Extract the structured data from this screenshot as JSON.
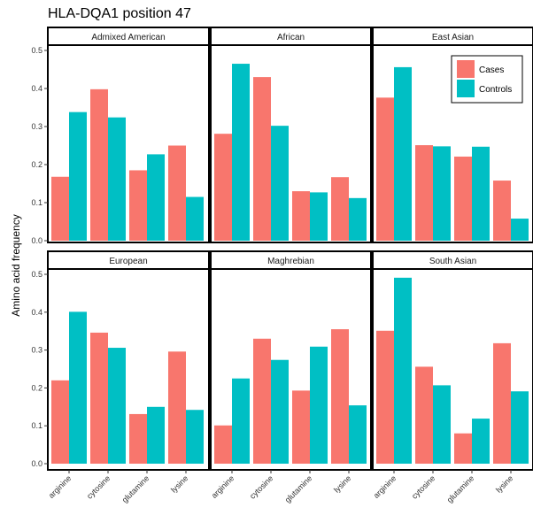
{
  "chart_data": {
    "type": "bar",
    "title": "HLA-DQA1 position 47",
    "xlabel": "",
    "ylabel": "Amino acid frequency",
    "ylim": [
      0,
      0.52
    ],
    "yticks": [
      "0.0",
      "0.1",
      "0.2",
      "0.3",
      "0.4",
      "0.5"
    ],
    "categories": [
      "arginine",
      "cytosine",
      "glutamine",
      "lysine"
    ],
    "legend": {
      "position": "top-right",
      "entries": [
        "Cases",
        "Controls"
      ]
    },
    "colors": {
      "Cases": "#F8766D",
      "Controls": "#00BFC4"
    },
    "grid": false,
    "panels": [
      {
        "name": "Admixed American",
        "series": [
          {
            "name": "Cases",
            "values": [
              0.168,
              0.398,
              0.185,
              0.25
            ]
          },
          {
            "name": "Controls",
            "values": [
              0.338,
              0.324,
              0.227,
              0.115
            ]
          }
        ]
      },
      {
        "name": "African",
        "series": [
          {
            "name": "Cases",
            "values": [
              0.281,
              0.43,
              0.13,
              0.167
            ]
          },
          {
            "name": "Controls",
            "values": [
              0.465,
              0.302,
              0.127,
              0.112
            ]
          }
        ]
      },
      {
        "name": "East Asian",
        "series": [
          {
            "name": "Cases",
            "values": [
              0.376,
              0.251,
              0.221,
              0.158
            ]
          },
          {
            "name": "Controls",
            "values": [
              0.456,
              0.248,
              0.247,
              0.058
            ]
          }
        ]
      },
      {
        "name": "European",
        "series": [
          {
            "name": "Cases",
            "values": [
              0.22,
              0.346,
              0.131,
              0.296
            ]
          },
          {
            "name": "Controls",
            "values": [
              0.401,
              0.306,
              0.15,
              0.142
            ]
          }
        ]
      },
      {
        "name": "Maghrebian",
        "series": [
          {
            "name": "Cases",
            "values": [
              0.101,
              0.33,
              0.193,
              0.355
            ]
          },
          {
            "name": "Controls",
            "values": [
              0.225,
              0.274,
              0.309,
              0.154
            ]
          }
        ]
      },
      {
        "name": "South Asian",
        "series": [
          {
            "name": "Cases",
            "values": [
              0.351,
              0.256,
              0.08,
              0.318
            ]
          },
          {
            "name": "Controls",
            "values": [
              0.491,
              0.207,
              0.119,
              0.191
            ]
          }
        ]
      }
    ]
  }
}
